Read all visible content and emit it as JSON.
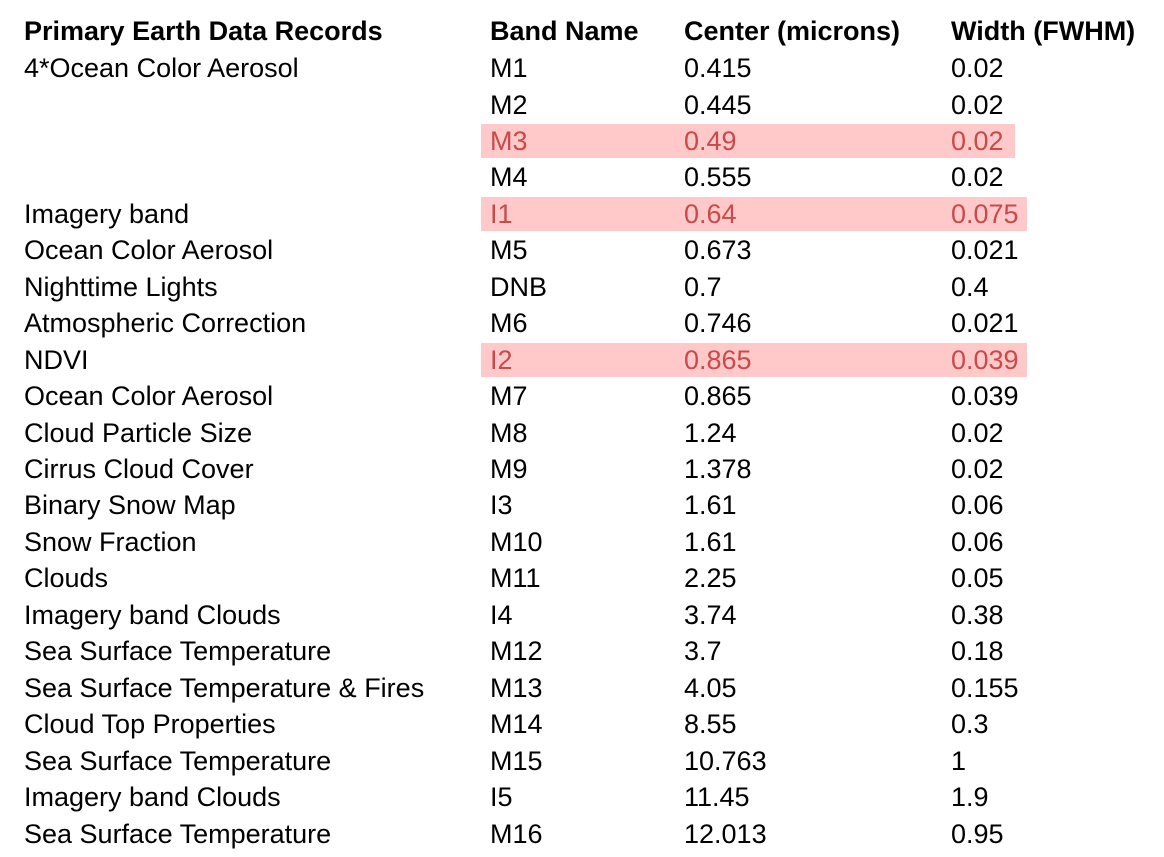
{
  "table": {
    "headers": [
      "Primary Earth Data Records",
      "Band Name",
      "Center (microns)",
      "Width (FWHM)"
    ],
    "rows": [
      {
        "record": "4*Ocean Color Aerosol",
        "band": "M1",
        "center": "0.415",
        "width": "0.02",
        "highlighted": false
      },
      {
        "record": "",
        "band": "M2",
        "center": "0.445",
        "width": "0.02",
        "highlighted": false
      },
      {
        "record": "",
        "band": "M3",
        "center": "0.49",
        "width": "0.02",
        "highlighted": true
      },
      {
        "record": "",
        "band": "M4",
        "center": "0.555",
        "width": "0.02",
        "highlighted": false
      },
      {
        "record": "Imagery band",
        "band": "I1",
        "center": "0.64",
        "width": "0.075",
        "highlighted": true
      },
      {
        "record": "Ocean Color Aerosol",
        "band": "M5",
        "center": "0.673",
        "width": "0.021",
        "highlighted": false
      },
      {
        "record": "Nighttime Lights",
        "band": "DNB",
        "center": "0.7",
        "width": "0.4",
        "highlighted": false
      },
      {
        "record": "Atmospheric Correction",
        "band": "M6",
        "center": "0.746",
        "width": "0.021",
        "highlighted": false
      },
      {
        "record": "NDVI",
        "band": "I2",
        "center": "0.865",
        "width": "0.039",
        "highlighted": true
      },
      {
        "record": "Ocean Color Aerosol",
        "band": "M7",
        "center": "0.865",
        "width": "0.039",
        "highlighted": false
      },
      {
        "record": "Cloud Particle Size",
        "band": "M8",
        "center": "1.24",
        "width": "0.02",
        "highlighted": false
      },
      {
        "record": "Cirrus Cloud Cover",
        "band": "M9",
        "center": "1.378",
        "width": "0.02",
        "highlighted": false
      },
      {
        "record": "Binary Snow Map",
        "band": "I3",
        "center": "1.61",
        "width": "0.06",
        "highlighted": false
      },
      {
        "record": "Snow Fraction",
        "band": "M10",
        "center": "1.61",
        "width": "0.06",
        "highlighted": false
      },
      {
        "record": "Clouds",
        "band": "M11",
        "center": "2.25",
        "width": "0.05",
        "highlighted": false
      },
      {
        "record": "Imagery band Clouds",
        "band": "I4",
        "center": "3.74",
        "width": "0.38",
        "highlighted": false
      },
      {
        "record": "Sea Surface Temperature",
        "band": "M12",
        "center": "3.7",
        "width": "0.18",
        "highlighted": false
      },
      {
        "record": "Sea Surface Temperature & Fires",
        "band": "M13",
        "center": "4.05",
        "width": "0.155",
        "highlighted": false
      },
      {
        "record": "Cloud Top Properties",
        "band": "M14",
        "center": "8.55",
        "width": "0.3",
        "highlighted": false
      },
      {
        "record": "Sea Surface Temperature",
        "band": "M15",
        "center": "10.763",
        "width": "1",
        "highlighted": false
      },
      {
        "record": "Imagery band Clouds",
        "band": "I5",
        "center": "11.45",
        "width": "1.9",
        "highlighted": false
      },
      {
        "record": "Sea Surface Temperature",
        "band": "M16",
        "center": "12.013",
        "width": "0.95",
        "highlighted": false
      }
    ]
  },
  "colors": {
    "highlight_background": "#ffc9c9",
    "highlight_text": "#c84a4a",
    "text": "#000000"
  }
}
